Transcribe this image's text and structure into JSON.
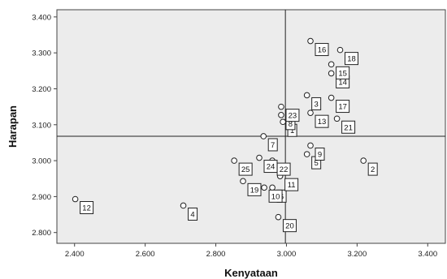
{
  "chart_data": {
    "type": "scatter",
    "xlabel": "Kenyataan",
    "ylabel": "Harapan",
    "xlim": [
      2.35,
      3.45
    ],
    "ylim": [
      2.77,
      3.42
    ],
    "x_ticks": [
      "2.400",
      "2.600",
      "2.800",
      "3.000",
      "3.200",
      "3.400"
    ],
    "y_ticks": [
      "2.800",
      "2.900",
      "3.000",
      "3.100",
      "3.200",
      "3.300",
      "3.400"
    ],
    "reference_lines": {
      "x_mean": 2.997,
      "y_mean": 3.068
    },
    "plot_background": "#ececec",
    "grid": false,
    "points": [
      {
        "label": "1",
        "x": 2.99,
        "y": 3.108
      },
      {
        "label": "2",
        "x": 3.218,
        "y": 3.0
      },
      {
        "label": "3",
        "x": 3.058,
        "y": 3.182
      },
      {
        "label": "4",
        "x": 2.708,
        "y": 2.875
      },
      {
        "label": "5",
        "x": 3.058,
        "y": 3.018
      },
      {
        "label": "6",
        "x": 2.96,
        "y": 2.925
      },
      {
        "label": "7",
        "x": 2.935,
        "y": 3.068
      },
      {
        "label": "8",
        "x": 2.985,
        "y": 3.127
      },
      {
        "label": "9",
        "x": 3.068,
        "y": 3.042
      },
      {
        "label": "10",
        "x": 2.937,
        "y": 2.925
      },
      {
        "label": "11",
        "x": 2.982,
        "y": 2.957
      },
      {
        "label": "12",
        "x": 2.402,
        "y": 2.893
      },
      {
        "label": "13",
        "x": 3.068,
        "y": 3.133
      },
      {
        "label": "14",
        "x": 3.127,
        "y": 3.243
      },
      {
        "label": "15",
        "x": 3.127,
        "y": 3.268
      },
      {
        "label": "16",
        "x": 3.068,
        "y": 3.333
      },
      {
        "label": "17",
        "x": 3.127,
        "y": 3.175
      },
      {
        "label": "18",
        "x": 3.152,
        "y": 3.308
      },
      {
        "label": "19",
        "x": 2.877,
        "y": 2.943
      },
      {
        "label": "20",
        "x": 2.977,
        "y": 2.843
      },
      {
        "label": "21",
        "x": 3.143,
        "y": 3.117
      },
      {
        "label": "22",
        "x": 2.96,
        "y": 3.0
      },
      {
        "label": "23",
        "x": 2.985,
        "y": 3.15
      },
      {
        "label": "24",
        "x": 2.923,
        "y": 3.008
      },
      {
        "label": "25",
        "x": 2.852,
        "y": 3.0
      }
    ]
  }
}
